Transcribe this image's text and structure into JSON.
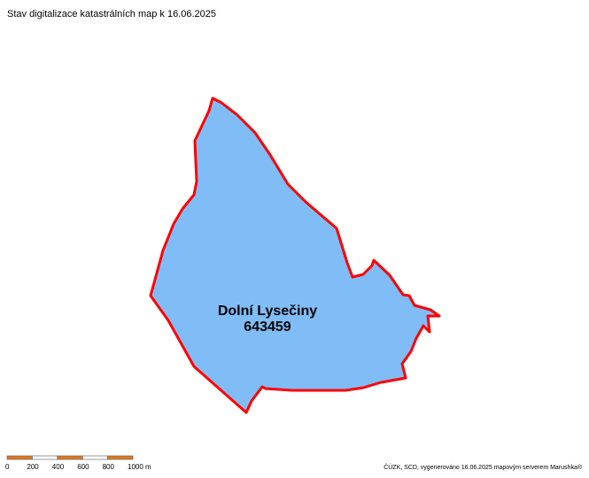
{
  "header": {
    "title": "Stav digitalizace katastrálních map k 16.06.2025"
  },
  "region": {
    "name": "Dolní Lysečiny",
    "code": "643459"
  },
  "scale": {
    "labels": [
      "0",
      "200",
      "400",
      "600",
      "800",
      "1000 m"
    ]
  },
  "footer": {
    "attribution": "ČÚZK, SCD, vygenerováno 16.06.2025 mapovým serverem Marushka®"
  }
}
